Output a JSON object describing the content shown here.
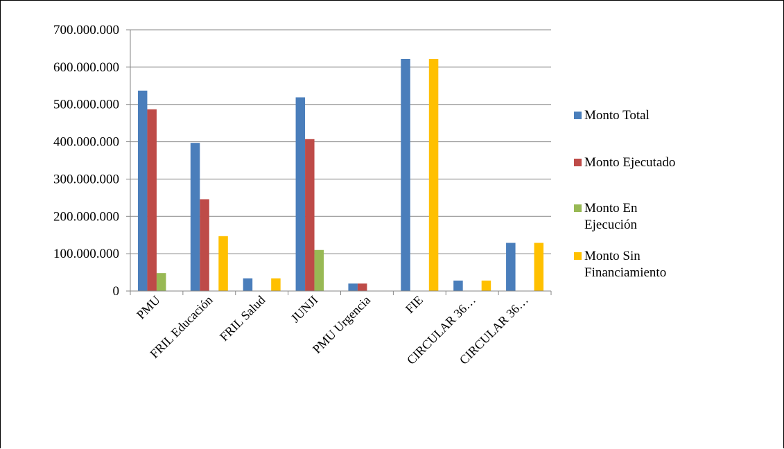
{
  "chart_data": {
    "type": "bar",
    "categories": [
      "PMU",
      "FRIL Educación",
      "FRIL Salud",
      "JUNJI",
      "PMU Urgencia",
      "FIE",
      "CIRCULAR 36…",
      "CIRCULAR 36…"
    ],
    "series": [
      {
        "name": "Monto Total",
        "color": "#4a7ebb",
        "values": [
          537000000,
          397000000,
          34000000,
          519000000,
          20000000,
          622000000,
          28000000,
          129000000
        ]
      },
      {
        "name": "Monto Ejecutado",
        "color": "#be4b48",
        "values": [
          487000000,
          246000000,
          0,
          407000000,
          20000000,
          0,
          0,
          0
        ]
      },
      {
        "name": "Monto En Ejecución",
        "color": "#98b954",
        "values": [
          48000000,
          0,
          0,
          110000000,
          0,
          0,
          0,
          0
        ]
      },
      {
        "name": "Monto Sin Financiamiento",
        "color": "#ffc000",
        "values": [
          0,
          147000000,
          34000000,
          0,
          0,
          622000000,
          28000000,
          129000000
        ]
      }
    ],
    "legend_lines": [
      [
        "Monto Total"
      ],
      [
        "Monto Ejecutado"
      ],
      [
        "Monto En",
        "Ejecución"
      ],
      [
        "Monto Sin",
        "Financiamiento"
      ]
    ],
    "yticks": [
      "0",
      "100.000.000",
      "200.000.000",
      "300.000.000",
      "400.000.000",
      "500.000.000",
      "600.000.000",
      "700.000.000"
    ],
    "ylim": [
      0,
      700000000
    ],
    "grid": "horizontal",
    "legend_position": "right",
    "axis_color": "#868686",
    "grid_color": "#868686"
  }
}
